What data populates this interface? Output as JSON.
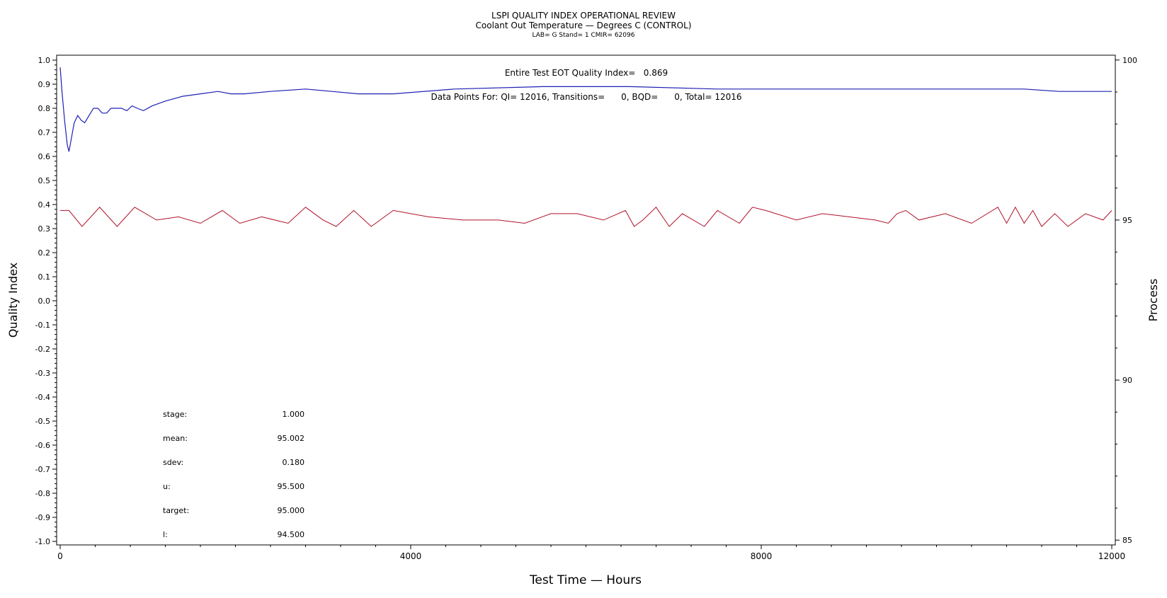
{
  "header": {
    "title": "LSPI QUALITY INDEX OPERATIONAL REVIEW",
    "subtitle": "Coolant Out Temperature — Degrees C (CONTROL)",
    "meta": "LAB= G Stand= 1 CMIR= 62096"
  },
  "annotations": {
    "eot_quality": "Entire Test EOT Quality Index=   0.869",
    "data_points": "Data Points For: QI= 12016, Transitions=      0, BQD=      0, Total= 12016"
  },
  "stats": [
    {
      "label": "stage:",
      "value": "1.000"
    },
    {
      "label": "mean:",
      "value": "95.002"
    },
    {
      "label": "sdev:",
      "value": "0.180"
    },
    {
      "label": "u:",
      "value": "95.500"
    },
    {
      "label": "target:",
      "value": "95.000"
    },
    {
      "label": "l:",
      "value": "94.500"
    }
  ],
  "colors": {
    "quality_line": "#1f1fb4",
    "process_line": "#b0102a"
  },
  "chart_data": {
    "type": "line",
    "xlabel": "Test Time — Hours",
    "ylabel": "Quality Index",
    "y2label": "Process",
    "xlim": [
      0,
      12000
    ],
    "ylim": [
      -1.0,
      1.0
    ],
    "y2lim": [
      84.85,
      100.15
    ],
    "x_ticks": [
      "0",
      "4000",
      "8000",
      "12000"
    ],
    "y_ticks": [
      "1.0",
      "0.9",
      "0.8",
      "0.7",
      "0.6",
      "0.5",
      "0.4",
      "0.3",
      "0.2",
      "0.1",
      "0.0",
      "-0.1",
      "-0.2",
      "-0.3",
      "-0.4",
      "-0.5",
      "-0.6",
      "-0.7",
      "-0.8",
      "-0.9",
      "-1.0"
    ],
    "y2_ticks": [
      "100",
      "95",
      "90",
      "85"
    ],
    "series": [
      {
        "role": "quality_index",
        "axis": "left",
        "x": [
          0,
          20,
          50,
          80,
          100,
          130,
          160,
          200,
          240,
          280,
          330,
          380,
          430,
          480,
          530,
          580,
          640,
          700,
          760,
          820,
          880,
          950,
          1050,
          1200,
          1400,
          1600,
          1800,
          1950,
          2100,
          2400,
          2800,
          3100,
          3400,
          3800,
          4500,
          5500,
          6500,
          7500,
          8500,
          9500,
          10500,
          11000,
          11400,
          12000
        ],
        "y": [
          0.97,
          0.87,
          0.75,
          0.65,
          0.62,
          0.68,
          0.74,
          0.77,
          0.75,
          0.74,
          0.77,
          0.8,
          0.8,
          0.78,
          0.78,
          0.8,
          0.8,
          0.8,
          0.79,
          0.81,
          0.8,
          0.79,
          0.81,
          0.83,
          0.85,
          0.86,
          0.87,
          0.86,
          0.86,
          0.87,
          0.88,
          0.87,
          0.86,
          0.86,
          0.88,
          0.89,
          0.89,
          0.88,
          0.88,
          0.88,
          0.88,
          0.88,
          0.87,
          0.87
        ]
      },
      {
        "role": "process",
        "axis": "right",
        "x": [
          0,
          100,
          250,
          450,
          650,
          850,
          1100,
          1350,
          1600,
          1850,
          2050,
          2300,
          2600,
          2800,
          3000,
          3150,
          3350,
          3550,
          3800,
          4200,
          4600,
          5000,
          5300,
          5600,
          5900,
          6200,
          6450,
          6550,
          6650,
          6800,
          6950,
          7100,
          7350,
          7500,
          7750,
          7900,
          8050,
          8400,
          8700,
          9000,
          9300,
          9450,
          9550,
          9650,
          9800,
          10100,
          10400,
          10700,
          10800,
          10900,
          11000,
          11100,
          11200,
          11350,
          11500,
          11700,
          11900,
          12000
        ],
        "y": [
          95.3,
          95.3,
          94.8,
          95.4,
          94.8,
          95.4,
          95.0,
          95.1,
          94.9,
          95.3,
          94.9,
          95.1,
          94.9,
          95.4,
          95.0,
          94.8,
          95.3,
          94.8,
          95.3,
          95.1,
          95.0,
          95.0,
          94.9,
          95.2,
          95.2,
          95.0,
          95.3,
          94.8,
          95.0,
          95.4,
          94.8,
          95.2,
          94.8,
          95.3,
          94.9,
          95.4,
          95.3,
          95.0,
          95.2,
          95.1,
          95.0,
          94.9,
          95.2,
          95.3,
          95.0,
          95.2,
          94.9,
          95.4,
          94.9,
          95.4,
          94.9,
          95.3,
          94.8,
          95.2,
          94.8,
          95.2,
          95.0,
          95.3
        ]
      }
    ]
  }
}
